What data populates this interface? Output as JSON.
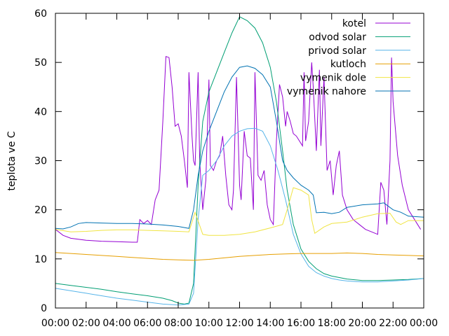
{
  "chart_data": {
    "type": "line",
    "title": "",
    "xlabel": "",
    "ylabel": "teplota ve C",
    "ylim": [
      0,
      60
    ],
    "yticks": [
      0,
      10,
      20,
      30,
      40,
      50,
      60
    ],
    "xlim": [
      "00:00",
      "24:00"
    ],
    "xtick_labels": [
      "00:00",
      "02:00",
      "04:00",
      "06:00",
      "08:00",
      "10:00",
      "12:00",
      "14:00",
      "16:00",
      "18:00",
      "20:00",
      "22:00",
      "00:00"
    ],
    "grid": false,
    "legend_position": "top-right",
    "series": [
      {
        "name": "kotel",
        "color": "#9400d3",
        "points": [
          [
            "00:00",
            16
          ],
          [
            "00:30",
            14.8
          ],
          [
            "01:00",
            14.2
          ],
          [
            "02:00",
            13.8
          ],
          [
            "03:00",
            13.6
          ],
          [
            "04:00",
            13.5
          ],
          [
            "05:00",
            13.4
          ],
          [
            "05:20",
            13.4
          ],
          [
            "05:30",
            18
          ],
          [
            "05:45",
            17.2
          ],
          [
            "06:00",
            17.8
          ],
          [
            "06:15",
            17
          ],
          [
            "06:30",
            22
          ],
          [
            "06:45",
            24
          ],
          [
            "07:00",
            38
          ],
          [
            "07:12",
            51.2
          ],
          [
            "07:24",
            51
          ],
          [
            "07:36",
            45
          ],
          [
            "07:48",
            37
          ],
          [
            "08:00",
            37.5
          ],
          [
            "08:12",
            35
          ],
          [
            "08:24",
            30
          ],
          [
            "08:36",
            24.5
          ],
          [
            "08:42",
            48
          ],
          [
            "08:54",
            35
          ],
          [
            "09:00",
            30
          ],
          [
            "09:06",
            29
          ],
          [
            "09:18",
            48
          ],
          [
            "09:24",
            30
          ],
          [
            "09:36",
            20
          ],
          [
            "09:48",
            26
          ],
          [
            "10:00",
            46.5
          ],
          [
            "10:06",
            29
          ],
          [
            "10:18",
            28
          ],
          [
            "10:30",
            30
          ],
          [
            "10:42",
            31
          ],
          [
            "10:54",
            35
          ],
          [
            "11:06",
            27
          ],
          [
            "11:18",
            21
          ],
          [
            "11:30",
            20
          ],
          [
            "11:36",
            24
          ],
          [
            "11:48",
            47
          ],
          [
            "12:00",
            25
          ],
          [
            "12:06",
            22
          ],
          [
            "12:18",
            36
          ],
          [
            "12:30",
            31
          ],
          [
            "12:42",
            30.5
          ],
          [
            "12:54",
            20
          ],
          [
            "13:00",
            48
          ],
          [
            "13:12",
            27
          ],
          [
            "13:24",
            26
          ],
          [
            "13:36",
            28
          ],
          [
            "13:48",
            21
          ],
          [
            "14:00",
            18
          ],
          [
            "14:12",
            17
          ],
          [
            "14:24",
            34
          ],
          [
            "14:36",
            45.5
          ],
          [
            "14:48",
            43
          ],
          [
            "15:00",
            37
          ],
          [
            "15:06",
            40
          ],
          [
            "15:18",
            38
          ],
          [
            "15:30",
            35.5
          ],
          [
            "15:42",
            35
          ],
          [
            "15:54",
            34
          ],
          [
            "16:06",
            33
          ],
          [
            "16:12",
            48
          ],
          [
            "16:18",
            34
          ],
          [
            "16:30",
            38
          ],
          [
            "16:42",
            50
          ],
          [
            "16:48",
            45
          ],
          [
            "17:00",
            32
          ],
          [
            "17:12",
            48.5
          ],
          [
            "17:18",
            33
          ],
          [
            "17:30",
            47
          ],
          [
            "17:42",
            28
          ],
          [
            "17:54",
            30
          ],
          [
            "18:06",
            23
          ],
          [
            "18:18",
            29
          ],
          [
            "18:30",
            32
          ],
          [
            "18:42",
            23
          ],
          [
            "19:00",
            20
          ],
          [
            "19:24",
            18
          ],
          [
            "19:48",
            17
          ],
          [
            "20:12",
            16
          ],
          [
            "20:36",
            15.5
          ],
          [
            "21:00",
            15
          ],
          [
            "21:12",
            25.6
          ],
          [
            "21:24",
            24
          ],
          [
            "21:36",
            17
          ],
          [
            "21:48",
            30
          ],
          [
            "21:54",
            51
          ],
          [
            "22:00",
            42
          ],
          [
            "22:18",
            31
          ],
          [
            "22:36",
            25
          ],
          [
            "23:00",
            20
          ],
          [
            "23:24",
            18
          ],
          [
            "23:48",
            16
          ]
        ]
      },
      {
        "name": "odvod solar",
        "color": "#009e73",
        "points": [
          [
            "00:00",
            5
          ],
          [
            "01:00",
            4.6
          ],
          [
            "02:00",
            4.2
          ],
          [
            "03:00",
            3.8
          ],
          [
            "04:00",
            3.3
          ],
          [
            "05:00",
            2.9
          ],
          [
            "06:00",
            2.5
          ],
          [
            "07:00",
            2
          ],
          [
            "07:36",
            1.5
          ],
          [
            "08:00",
            1
          ],
          [
            "08:24",
            0.8
          ],
          [
            "08:42",
            1
          ],
          [
            "09:00",
            5
          ],
          [
            "09:18",
            25
          ],
          [
            "09:36",
            38
          ],
          [
            "10:00",
            44
          ],
          [
            "10:30",
            48
          ],
          [
            "11:00",
            52
          ],
          [
            "11:30",
            56
          ],
          [
            "12:00",
            59.3
          ],
          [
            "12:30",
            58.5
          ],
          [
            "13:00",
            57
          ],
          [
            "13:30",
            54
          ],
          [
            "14:00",
            49
          ],
          [
            "14:24",
            42
          ],
          [
            "14:48",
            32
          ],
          [
            "15:06",
            24
          ],
          [
            "15:30",
            17
          ],
          [
            "16:00",
            12
          ],
          [
            "16:30",
            9.5
          ],
          [
            "17:00",
            8
          ],
          [
            "17:30",
            7
          ],
          [
            "18:00",
            6.5
          ],
          [
            "18:30",
            6.2
          ],
          [
            "19:00",
            5.9
          ],
          [
            "20:00",
            5.6
          ],
          [
            "21:00",
            5.6
          ],
          [
            "22:00",
            5.7
          ],
          [
            "23:00",
            5.8
          ],
          [
            "24:00",
            6
          ]
        ]
      },
      {
        "name": "privod solar",
        "color": "#56b4e9",
        "points": [
          [
            "00:00",
            4
          ],
          [
            "01:00",
            3.5
          ],
          [
            "02:00",
            3
          ],
          [
            "03:00",
            2.5
          ],
          [
            "04:00",
            2
          ],
          [
            "05:00",
            1.6
          ],
          [
            "06:00",
            1.2
          ],
          [
            "07:00",
            0.8
          ],
          [
            "08:00",
            0.6
          ],
          [
            "08:42",
            0.8
          ],
          [
            "09:00",
            3
          ],
          [
            "09:18",
            18
          ],
          [
            "09:36",
            27
          ],
          [
            "10:00",
            28
          ],
          [
            "10:30",
            30
          ],
          [
            "11:00",
            33
          ],
          [
            "11:30",
            35
          ],
          [
            "12:00",
            36
          ],
          [
            "12:30",
            36.5
          ],
          [
            "13:00",
            36.6
          ],
          [
            "13:30",
            36
          ],
          [
            "14:00",
            33
          ],
          [
            "14:30",
            28
          ],
          [
            "15:00",
            22
          ],
          [
            "15:30",
            15
          ],
          [
            "16:00",
            11
          ],
          [
            "16:30",
            8.5
          ],
          [
            "17:00",
            7.2
          ],
          [
            "17:30",
            6.5
          ],
          [
            "18:00",
            6
          ],
          [
            "18:30",
            5.7
          ],
          [
            "19:00",
            5.5
          ],
          [
            "20:00",
            5.3
          ],
          [
            "21:00",
            5.3
          ],
          [
            "22:00",
            5.5
          ],
          [
            "23:00",
            5.7
          ],
          [
            "24:00",
            6
          ]
        ]
      },
      {
        "name": "kutloch",
        "color": "#e69f00",
        "points": [
          [
            "00:00",
            11.3
          ],
          [
            "01:00",
            11.1
          ],
          [
            "02:00",
            10.9
          ],
          [
            "03:00",
            10.7
          ],
          [
            "04:00",
            10.5
          ],
          [
            "05:00",
            10.3
          ],
          [
            "06:00",
            10.1
          ],
          [
            "07:00",
            9.9
          ],
          [
            "08:00",
            9.8
          ],
          [
            "09:00",
            9.7
          ],
          [
            "10:00",
            9.9
          ],
          [
            "11:00",
            10.2
          ],
          [
            "12:00",
            10.5
          ],
          [
            "13:00",
            10.7
          ],
          [
            "14:00",
            10.9
          ],
          [
            "15:00",
            11
          ],
          [
            "16:00",
            11.1
          ],
          [
            "17:00",
            11.1
          ],
          [
            "18:00",
            11.1
          ],
          [
            "19:00",
            11.2
          ],
          [
            "20:00",
            11.1
          ],
          [
            "21:00",
            10.9
          ],
          [
            "22:00",
            10.8
          ],
          [
            "23:00",
            10.7
          ],
          [
            "24:00",
            10.6
          ]
        ]
      },
      {
        "name": "vymenik dole",
        "color": "#f0e442",
        "points": [
          [
            "00:00",
            16
          ],
          [
            "01:00",
            15.5
          ],
          [
            "02:00",
            15.6
          ],
          [
            "03:00",
            15.8
          ],
          [
            "04:00",
            15.9
          ],
          [
            "05:00",
            15.9
          ],
          [
            "06:00",
            15.8
          ],
          [
            "07:00",
            15.7
          ],
          [
            "08:00",
            15.6
          ],
          [
            "08:42",
            15.5
          ],
          [
            "09:06",
            19.5
          ],
          [
            "09:36",
            15
          ],
          [
            "10:00",
            14.8
          ],
          [
            "11:00",
            14.8
          ],
          [
            "12:00",
            15
          ],
          [
            "13:00",
            15.5
          ],
          [
            "14:00",
            16.3
          ],
          [
            "14:48",
            17
          ],
          [
            "15:06",
            20
          ],
          [
            "15:30",
            24.5
          ],
          [
            "16:00",
            24
          ],
          [
            "16:30",
            23
          ],
          [
            "16:42",
            18
          ],
          [
            "16:54",
            15.2
          ],
          [
            "17:30",
            16.5
          ],
          [
            "18:00",
            17.2
          ],
          [
            "19:00",
            17.5
          ],
          [
            "20:00",
            18.5
          ],
          [
            "21:00",
            19.2
          ],
          [
            "21:48",
            19.3
          ],
          [
            "22:12",
            17.5
          ],
          [
            "22:30",
            17
          ],
          [
            "23:00",
            17.8
          ],
          [
            "24:00",
            17.8
          ]
        ]
      },
      {
        "name": "vymenik nahore",
        "color": "#0072b2",
        "points": [
          [
            "00:00",
            16.2
          ],
          [
            "00:30",
            16.1
          ],
          [
            "01:00",
            16.5
          ],
          [
            "01:30",
            17.2
          ],
          [
            "02:00",
            17.4
          ],
          [
            "03:00",
            17.3
          ],
          [
            "04:00",
            17.2
          ],
          [
            "05:00",
            17.2
          ],
          [
            "06:00",
            17.1
          ],
          [
            "07:00",
            16.9
          ],
          [
            "08:00",
            16.6
          ],
          [
            "08:42",
            16.2
          ],
          [
            "09:00",
            20
          ],
          [
            "09:18",
            27
          ],
          [
            "09:36",
            32
          ],
          [
            "10:00",
            36
          ],
          [
            "10:30",
            40
          ],
          [
            "11:00",
            44
          ],
          [
            "11:30",
            47
          ],
          [
            "12:00",
            49
          ],
          [
            "12:30",
            49.3
          ],
          [
            "13:00",
            48.8
          ],
          [
            "13:30",
            47.5
          ],
          [
            "14:00",
            45
          ],
          [
            "14:24",
            38
          ],
          [
            "14:48",
            30
          ],
          [
            "15:06",
            28
          ],
          [
            "15:30",
            26.5
          ],
          [
            "16:00",
            25
          ],
          [
            "16:30",
            24
          ],
          [
            "16:48",
            23
          ],
          [
            "17:00",
            19.4
          ],
          [
            "17:30",
            19.5
          ],
          [
            "18:00",
            19.2
          ],
          [
            "18:30",
            19.5
          ],
          [
            "19:00",
            20.5
          ],
          [
            "20:00",
            21
          ],
          [
            "21:00",
            21.2
          ],
          [
            "21:24",
            21.4
          ],
          [
            "22:00",
            20
          ],
          [
            "22:30",
            19.5
          ],
          [
            "23:00",
            18.7
          ],
          [
            "24:00",
            18.5
          ]
        ]
      }
    ]
  }
}
